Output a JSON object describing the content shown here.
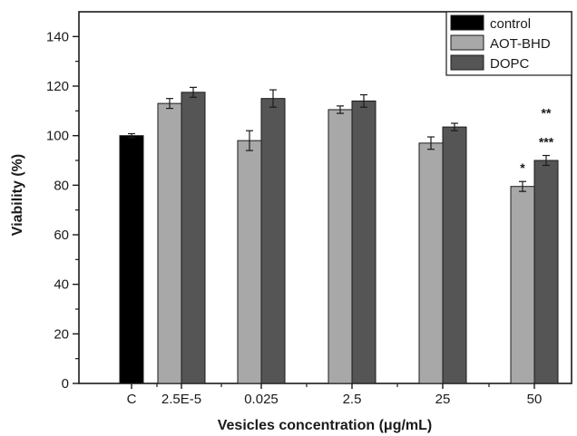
{
  "chart_data": {
    "type": "bar",
    "xlabel": "Vesicles concentration (μg/mL)",
    "ylabel": "Viability (%)",
    "ylim": [
      0,
      150
    ],
    "yticks": [
      0,
      20,
      40,
      60,
      80,
      100,
      120,
      140
    ],
    "categories": [
      "C",
      "2.5E-5",
      "0.025",
      "2.5",
      "25",
      "50"
    ],
    "series": [
      {
        "name": "control",
        "color": "#000000",
        "values": [
          100,
          null,
          null,
          null,
          null,
          null
        ],
        "errors": [
          0.8,
          null,
          null,
          null,
          null,
          null
        ]
      },
      {
        "name": "AOT-BHD",
        "color": "#a8a8a8",
        "values": [
          null,
          113,
          98,
          110.5,
          97,
          79.5
        ],
        "errors": [
          null,
          2,
          4,
          1.5,
          2.5,
          2
        ]
      },
      {
        "name": "DOPC",
        "color": "#555555",
        "values": [
          null,
          117.5,
          115,
          114,
          103.5,
          90
        ],
        "errors": [
          null,
          2,
          3.5,
          2.5,
          1.5,
          2
        ]
      }
    ],
    "annotations": [
      {
        "category": "50",
        "series": "AOT-BHD",
        "text": "*"
      },
      {
        "category": "50",
        "series": "DOPC",
        "text": "***"
      },
      {
        "category": "50",
        "series": "DOPC",
        "text": "**"
      }
    ],
    "legend_position": "top-right",
    "grid": false
  }
}
